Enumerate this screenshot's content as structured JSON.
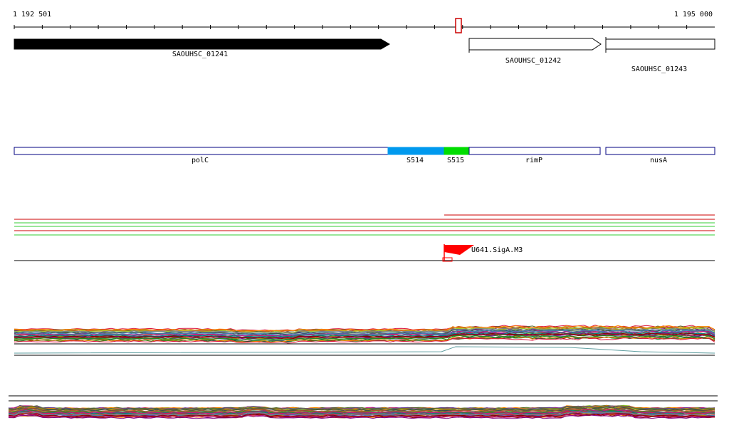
{
  "ruler": {
    "start_label": "1 192 501",
    "end_label": "1 195 000"
  },
  "genes": [
    {
      "label": "SAOUHSC_01241",
      "strand": "+",
      "style": "filled"
    },
    {
      "label": "SAOUHSC_01242",
      "strand": "+",
      "style": "outline"
    },
    {
      "label": "SAOUHSC_01243",
      "strand": "+",
      "style": "outline"
    }
  ],
  "segments": [
    {
      "label": "polC",
      "color": "#ffffff"
    },
    {
      "label": "S514",
      "color": "#0099ee"
    },
    {
      "label": "S515",
      "color": "#00dd00"
    },
    {
      "label": "rimP",
      "color": "#ffffff"
    },
    {
      "label": "nusA",
      "color": "#ffffff"
    }
  ],
  "promoter": {
    "label": "U641.SigA.M3",
    "color": "#ff0000"
  },
  "colors": {
    "outline": "#000080",
    "red_track": "#cc0000",
    "green_track": "#33cc33",
    "marker": "#cc0000"
  },
  "icons": {
    "position-marker": "marker-icon",
    "promoter-flag": "flag-icon"
  }
}
